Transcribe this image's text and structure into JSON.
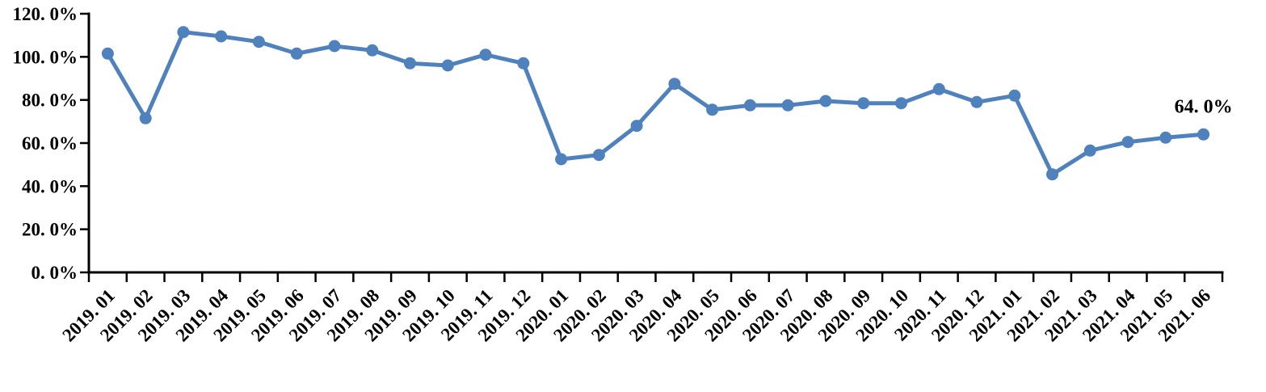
{
  "chart_data": {
    "type": "line",
    "title": "",
    "xlabel": "",
    "ylabel": "",
    "categories": [
      "2019. 01",
      "2019. 02",
      "2019. 03",
      "2019. 04",
      "2019. 05",
      "2019. 06",
      "2019. 07",
      "2019. 08",
      "2019. 09",
      "2019. 10",
      "2019. 11",
      "2019. 12",
      "2020. 01",
      "2020. 02",
      "2020. 03",
      "2020. 04",
      "2020. 05",
      "2020. 06",
      "2020. 07",
      "2020. 08",
      "2020. 09",
      "2020. 10",
      "2020. 11",
      "2020. 12",
      "2021. 01",
      "2021. 02",
      "2021. 03",
      "2021. 04",
      "2021. 05",
      "2021. 06"
    ],
    "series": [
      {
        "name": "",
        "values": [
          101.5,
          71.5,
          111.5,
          109.5,
          107.0,
          101.5,
          105.0,
          103.0,
          97.0,
          96.0,
          101.0,
          97.0,
          52.5,
          54.5,
          68.0,
          87.5,
          75.5,
          77.5,
          77.5,
          79.5,
          78.5,
          78.5,
          85.0,
          79.0,
          82.0,
          45.5,
          56.5,
          60.5,
          62.5,
          64.0
        ]
      }
    ],
    "ylim": [
      0,
      120
    ],
    "yticks": {
      "values": [
        0,
        20,
        40,
        60,
        80,
        100,
        120
      ],
      "labels": [
        "0. 0%",
        "20. 0%",
        "40. 0%",
        "60. 0%",
        "80. 0%",
        "100. 0%",
        "120. 0%"
      ]
    },
    "grid": false,
    "legend_position": "none",
    "annotation": {
      "text": "64. 0%",
      "point_index": 29
    },
    "colors": {
      "line": "#4F81BD",
      "marker": "#4F81BD",
      "axis": "#000000",
      "text": "#000000",
      "background": "#FFFFFF"
    }
  }
}
